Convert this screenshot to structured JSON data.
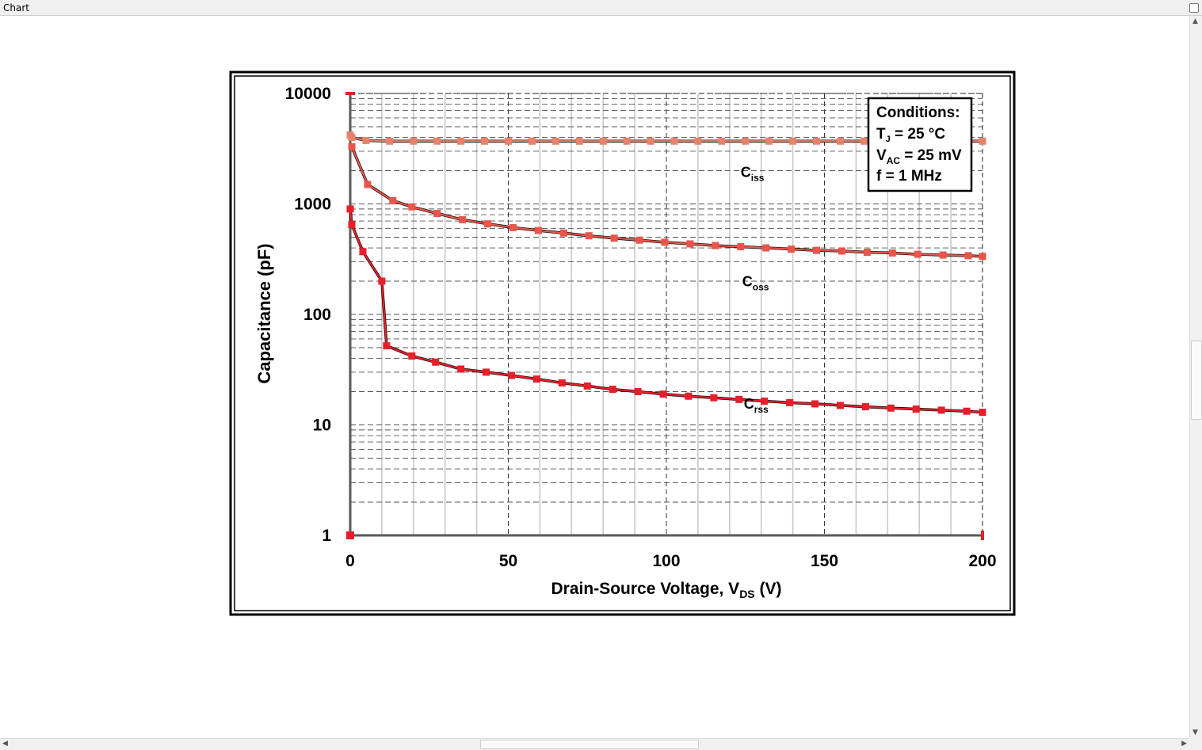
{
  "window": {
    "title": "Chart"
  },
  "chart_data": {
    "type": "line",
    "xlabel": "Drain-Source Voltage, V",
    "xlabel_sub": "DS",
    "xlabel_unit": " (V)",
    "ylabel": "Capacitance (pF)",
    "xlim": [
      0,
      200
    ],
    "ylim": [
      1,
      10000
    ],
    "yscale": "log",
    "grid": true,
    "x_ticks": [
      "0",
      "50",
      "100",
      "150",
      "200"
    ],
    "y_ticks": [
      "1",
      "10",
      "100",
      "1000",
      "10000"
    ],
    "series": [
      {
        "name": "C",
        "name_sub": "iss",
        "color": "#e8826c",
        "x": [
          0,
          0.5,
          5,
          12.5,
          20,
          27.5,
          35,
          42.5,
          50,
          57.5,
          65,
          72.5,
          80,
          87.5,
          95,
          102.5,
          110,
          117.5,
          125,
          132.5,
          140,
          147.5,
          155,
          162.5,
          170,
          177.5,
          185,
          192.5,
          200
        ],
        "values": [
          4200,
          4000,
          3750,
          3700,
          3700,
          3700,
          3700,
          3700,
          3700,
          3700,
          3700,
          3700,
          3700,
          3700,
          3700,
          3700,
          3700,
          3700,
          3700,
          3700,
          3700,
          3700,
          3700,
          3700,
          3700,
          3700,
          3700,
          3700,
          3700
        ]
      },
      {
        "name": "C",
        "name_sub": "oss",
        "color": "#e8554a",
        "x": [
          0.5,
          5.5,
          13.5,
          19.5,
          27.5,
          35.5,
          43.5,
          51.5,
          59.5,
          67.5,
          75.5,
          83.5,
          91.5,
          99.5,
          107.5,
          115.5,
          123.5,
          131.5,
          139.5,
          147.5,
          155.5,
          163.5,
          171.5,
          179.5,
          187.5,
          195.5,
          200
        ],
        "values": [
          3300,
          1500,
          1070,
          940,
          820,
          720,
          660,
          610,
          575,
          545,
          515,
          490,
          470,
          450,
          435,
          420,
          410,
          400,
          390,
          380,
          375,
          365,
          360,
          350,
          345,
          340,
          335
        ]
      },
      {
        "name": "C",
        "name_sub": "rss",
        "color": "#e81e2a",
        "x": [
          0,
          0.5,
          4,
          10,
          11.5,
          19.5,
          27,
          35,
          43,
          51,
          59,
          67,
          75,
          83,
          91,
          99,
          107,
          115,
          123,
          131,
          139,
          147,
          155,
          163,
          171,
          179,
          187,
          195,
          200
        ],
        "values": [
          900,
          650,
          370,
          200,
          52,
          42,
          37,
          32,
          30,
          28,
          26,
          24,
          22.5,
          21,
          20,
          19,
          18.2,
          17.6,
          17,
          16.4,
          15.9,
          15.5,
          15,
          14.6,
          14.2,
          13.9,
          13.6,
          13.3,
          13
        ]
      }
    ],
    "conditions": {
      "title": "Conditions:",
      "tj_main": "T",
      "tj_sub": "J",
      "tj_value": " = 25 °C",
      "vac_main": "V",
      "vac_sub": "AC",
      "vac_value": " = 25 mV",
      "freq": "f = 1 MHz"
    },
    "legend_position": "top-right"
  }
}
